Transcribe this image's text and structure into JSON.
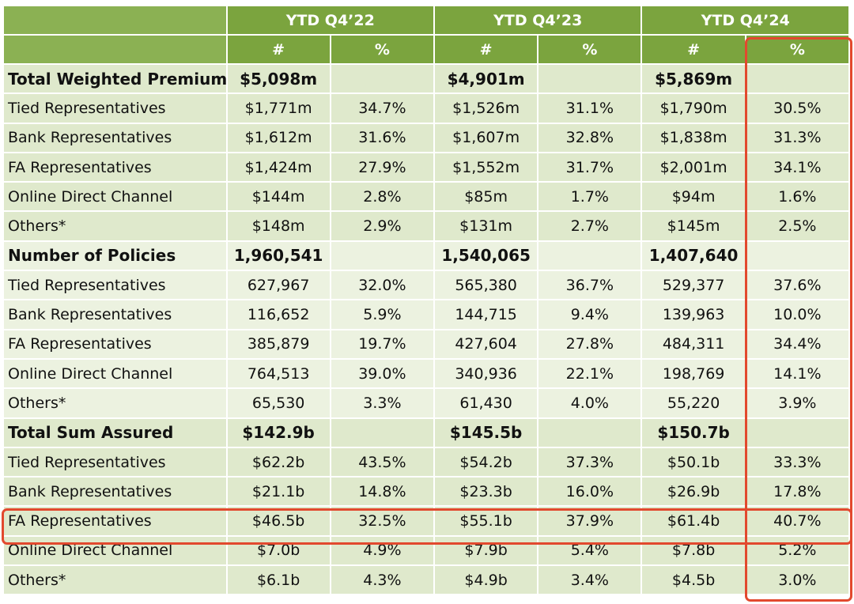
{
  "header": {
    "periods": [
      "YTD Q4’22",
      "YTD Q4’23",
      "YTD Q4’24"
    ],
    "num_label": "#",
    "pct_label": "%"
  },
  "sections": [
    {
      "title": "Total Weighted Premium",
      "totals": [
        "$5,098m",
        "$4,901m",
        "$5,869m"
      ],
      "rows": [
        {
          "label": "Tied Representatives",
          "values": [
            "$1,771m",
            "34.7%",
            "$1,526m",
            "31.1%",
            "$1,790m",
            "30.5%"
          ]
        },
        {
          "label": "Bank Representatives",
          "values": [
            "$1,612m",
            "31.6%",
            "$1,607m",
            "32.8%",
            "$1,838m",
            "31.3%"
          ]
        },
        {
          "label": "FA Representatives",
          "values": [
            "$1,424m",
            "27.9%",
            "$1,552m",
            "31.7%",
            "$2,001m",
            "34.1%"
          ]
        },
        {
          "label": "Online Direct Channel",
          "values": [
            "$144m",
            "2.8%",
            "$85m",
            "1.7%",
            "$94m",
            "1.6%"
          ]
        },
        {
          "label": "Others*",
          "values": [
            "$148m",
            "2.9%",
            "$131m",
            "2.7%",
            "$145m",
            "2.5%"
          ]
        }
      ]
    },
    {
      "title": "Number of Policies",
      "totals": [
        "1,960,541",
        "1,540,065",
        "1,407,640"
      ],
      "rows": [
        {
          "label": "Tied Representatives",
          "values": [
            "627,967",
            "32.0%",
            "565,380",
            "36.7%",
            "529,377",
            "37.6%"
          ]
        },
        {
          "label": "Bank Representatives",
          "values": [
            "116,652",
            "5.9%",
            "144,715",
            "9.4%",
            "139,963",
            "10.0%"
          ]
        },
        {
          "label": "FA Representatives",
          "values": [
            "385,879",
            "19.7%",
            "427,604",
            "27.8%",
            "484,311",
            "34.4%"
          ]
        },
        {
          "label": "Online Direct Channel",
          "values": [
            "764,513",
            "39.0%",
            "340,936",
            "22.1%",
            "198,769",
            "14.1%"
          ]
        },
        {
          "label": "Others*",
          "values": [
            "65,530",
            "3.3%",
            "61,430",
            "4.0%",
            "55,220",
            "3.9%"
          ]
        }
      ]
    },
    {
      "title": "Total Sum Assured",
      "totals": [
        "$142.9b",
        "$145.5b",
        "$150.7b"
      ],
      "rows": [
        {
          "label": "Tied Representatives",
          "values": [
            "$62.2b",
            "43.5%",
            "$54.2b",
            "37.3%",
            "$50.1b",
            "33.3%"
          ]
        },
        {
          "label": "Bank Representatives",
          "values": [
            "$21.1b",
            "14.8%",
            "$23.3b",
            "16.0%",
            "$26.9b",
            "17.8%"
          ]
        },
        {
          "label": "FA Representatives",
          "values": [
            "$46.5b",
            "32.5%",
            "$55.1b",
            "37.9%",
            "$61.4b",
            "40.7%"
          ]
        },
        {
          "label": "Online Direct Channel",
          "values": [
            "$7.0b",
            "4.9%",
            "$7.9b",
            "5.4%",
            "$7.8b",
            "5.2%"
          ]
        },
        {
          "label": "Others*",
          "values": [
            "$6.1b",
            "4.3%",
            "$4.9b",
            "3.4%",
            "$4.5b",
            "3.0%"
          ]
        }
      ]
    }
  ],
  "colors": {
    "header_bg": "#7ba43e",
    "row_dark": "#dfe9cc",
    "row_light": "#ecf2e0",
    "highlight": "#e2492e"
  }
}
